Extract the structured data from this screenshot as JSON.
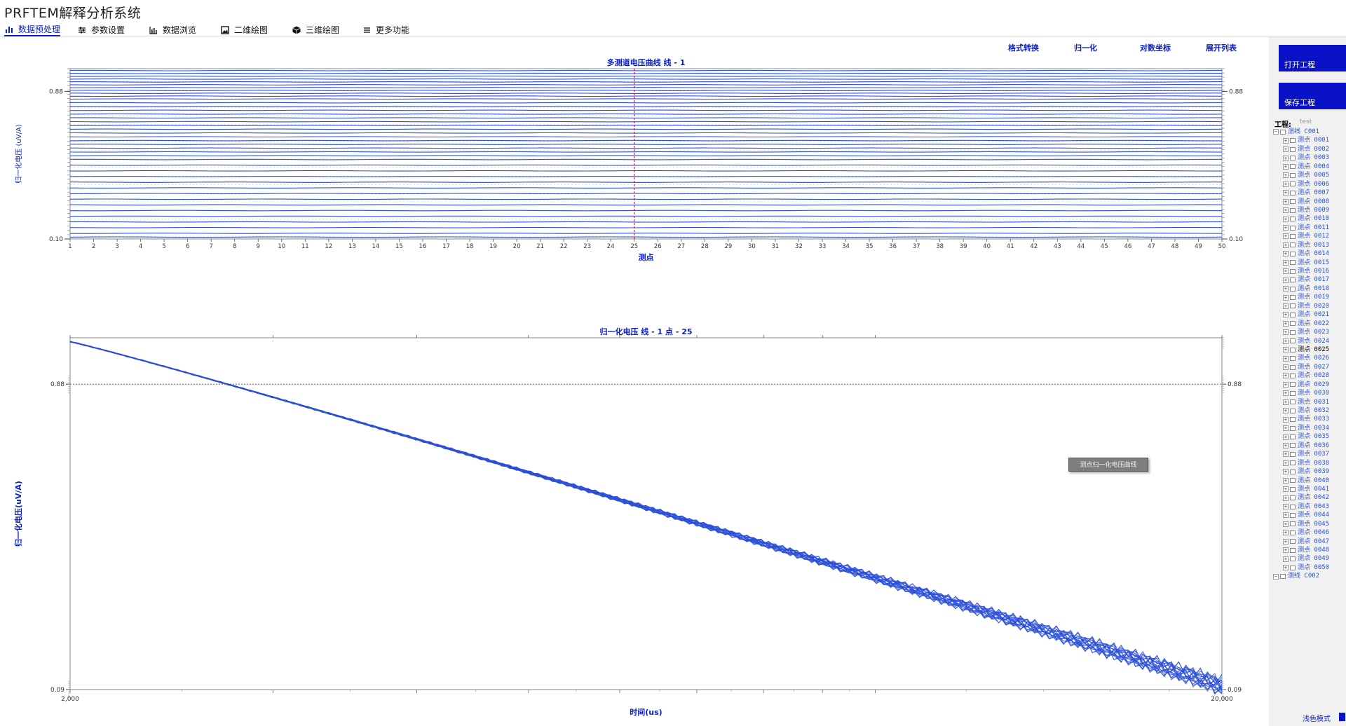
{
  "app": {
    "title": "PRFTEM解释分析系统"
  },
  "tabs": [
    {
      "label": "数据预处理",
      "icon": "bar-chart-icon",
      "active": true
    },
    {
      "label": "参数设置",
      "icon": "sliders-icon",
      "active": false
    },
    {
      "label": "数据浏览",
      "icon": "line-chart-icon",
      "active": false
    },
    {
      "label": "二维绘图",
      "icon": "image-icon",
      "active": false
    },
    {
      "label": "三维绘图",
      "icon": "cube-icon",
      "active": false
    },
    {
      "label": "更多功能",
      "icon": "menu-icon",
      "active": false
    }
  ],
  "toolbar": [
    {
      "label": "格式转换"
    },
    {
      "label": "归一化"
    },
    {
      "label": "对数坐标"
    },
    {
      "label": "展开列表"
    }
  ],
  "sidebar": {
    "open_project": "打开工程",
    "save_project": "保存工程",
    "project_label": "工程:",
    "project_value": "test",
    "line_1": "测线 C001",
    "points_prefix": "测点 ",
    "point_ids": [
      "0001",
      "0002",
      "0003",
      "0004",
      "0005",
      "0006",
      "0007",
      "0008",
      "0009",
      "0010",
      "0011",
      "0012",
      "0013",
      "0014",
      "0015",
      "0016",
      "0017",
      "0018",
      "0019",
      "0020",
      "0021",
      "0022",
      "0023",
      "0024",
      "0025",
      "0026",
      "0027",
      "0028",
      "0029",
      "0030",
      "0031",
      "0032",
      "0033",
      "0034",
      "0035",
      "0036",
      "0037",
      "0038",
      "0039",
      "0040",
      "0041",
      "0042",
      "0043",
      "0044",
      "0045",
      "0046",
      "0047",
      "0048",
      "0049",
      "0050"
    ],
    "selected_point": "0025",
    "line_2": "测线 C002",
    "mode_label": "浅色模式"
  },
  "tooltip": {
    "text": "测点归一化电压曲线"
  },
  "colors": {
    "accent": "#0a12c8",
    "series": "#2b4fd8",
    "cursor": "#b0003a"
  },
  "chart_data": [
    {
      "type": "line",
      "title": "多测道电压曲线 线 - 1",
      "xlabel": "测点",
      "ylabel": "归一化电压 (uV/A)",
      "x": [
        1,
        2,
        3,
        4,
        5,
        6,
        7,
        8,
        9,
        10,
        11,
        12,
        13,
        14,
        15,
        16,
        17,
        18,
        19,
        20,
        21,
        22,
        23,
        24,
        25,
        26,
        27,
        28,
        29,
        30,
        31,
        32,
        33,
        34,
        35,
        36,
        37,
        38,
        39,
        40,
        41,
        42,
        43,
        44,
        45,
        46,
        47,
        48,
        49,
        50
      ],
      "xlim": [
        1,
        50
      ],
      "ylim": [
        0.1,
        1.0
      ],
      "ytick_labels": [
        "0.10",
        "0.88"
      ],
      "ytick_values": [
        0.1,
        0.88
      ],
      "series_count": 41,
      "series_levels": [
        0.99,
        0.975,
        0.96,
        0.945,
        0.93,
        0.915,
        0.9,
        0.885,
        0.87,
        0.855,
        0.84,
        0.82,
        0.8,
        0.78,
        0.76,
        0.74,
        0.72,
        0.7,
        0.68,
        0.66,
        0.64,
        0.62,
        0.6,
        0.58,
        0.56,
        0.54,
        0.52,
        0.49,
        0.46,
        0.43,
        0.4,
        0.37,
        0.34,
        0.31,
        0.28,
        0.25,
        0.22,
        0.19,
        0.16,
        0.13,
        0.11
      ],
      "cursor_x": 25,
      "grid": "dotted"
    },
    {
      "type": "line",
      "title": "归一化电压 线 - 1  点 - 25",
      "xlabel": "时间(us)",
      "ylabel": "归一化电压(uV/A)",
      "xscale": "log",
      "xlim": [
        2000,
        20000
      ],
      "xtick_labels": [
        "2,000",
        "20,000"
      ],
      "ylim": [
        0.09,
        1.0
      ],
      "ytick_labels": [
        "0.88",
        "0.09"
      ],
      "ytick_values": [
        0.88,
        0.09
      ],
      "reference_line_y": 0.88,
      "series_count": 20,
      "start": {
        "x": 2000,
        "y": 0.99
      },
      "end": {
        "x": 20000,
        "y": 0.1
      }
    }
  ]
}
